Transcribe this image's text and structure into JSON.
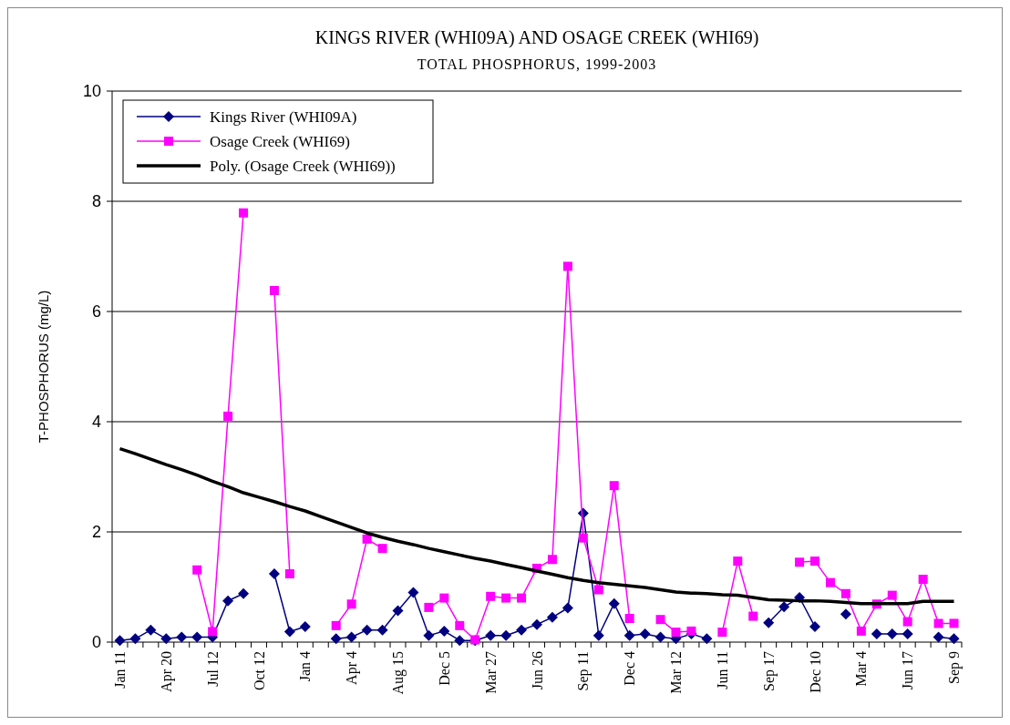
{
  "chart_data": {
    "type": "line",
    "title": "KINGS RIVER (WHI09A) AND OSAGE CREEK (WHI69)",
    "subtitle": "TOTAL PHOSPHORUS, 1999-2003",
    "ylabel": "T-PHOSPHORUS (mg/L)",
    "categories": [
      "Jan 11",
      null,
      null,
      "Apr 20",
      null,
      null,
      "Jul 12",
      null,
      null,
      "Oct 12",
      null,
      null,
      "Jan 4",
      null,
      null,
      "Apr 4",
      null,
      null,
      "Aug 15",
      null,
      null,
      "Dec 5",
      null,
      null,
      "Mar 27",
      null,
      null,
      "Jun 26",
      null,
      null,
      "Sep 11",
      null,
      null,
      "Dec 4",
      null,
      null,
      "Mar 12",
      null,
      null,
      "Jun 11",
      null,
      null,
      "Sep 17",
      null,
      null,
      "Dec 10",
      null,
      null,
      "Mar 4",
      null,
      null,
      "Jun 17",
      null,
      null,
      "Sep 9"
    ],
    "ylim": [
      0,
      10
    ],
    "yticks": [
      0,
      2,
      4,
      6,
      8,
      10
    ],
    "grid": "y",
    "legend": "top left",
    "series": [
      {
        "name": "Kings River (WHI09A)",
        "color": "#000080",
        "marker": "diamond",
        "values": [
          0.03,
          0.06,
          0.22,
          0.06,
          0.09,
          0.09,
          0.09,
          0.75,
          0.88,
          null,
          1.24,
          0.19,
          0.28,
          null,
          0.06,
          0.09,
          0.22,
          0.22,
          0.57,
          0.9,
          0.12,
          0.2,
          0.03,
          0.03,
          0.12,
          0.12,
          0.22,
          0.32,
          0.45,
          0.62,
          2.34,
          0.12,
          0.7,
          0.12,
          0.15,
          0.09,
          0.06,
          0.15,
          0.06,
          null,
          null,
          null,
          0.35,
          0.64,
          0.81,
          0.28,
          null,
          0.51,
          null,
          0.15,
          0.15,
          0.15,
          null,
          0.09,
          0.06
        ]
      },
      {
        "name": "Osage Creek (WHI69)",
        "color": "#ff00ff",
        "marker": "square",
        "values": [
          null,
          null,
          null,
          null,
          null,
          1.31,
          0.19,
          4.1,
          7.79,
          null,
          6.38,
          1.24,
          null,
          null,
          0.3,
          0.69,
          1.87,
          1.7,
          null,
          null,
          0.63,
          0.8,
          0.3,
          0.04,
          0.83,
          0.8,
          0.8,
          1.34,
          1.5,
          6.82,
          1.89,
          0.95,
          2.84,
          0.43,
          null,
          0.41,
          0.18,
          0.2,
          null,
          0.18,
          1.47,
          0.47,
          null,
          null,
          1.45,
          1.47,
          1.08,
          0.88,
          0.2,
          0.69,
          0.85,
          0.37,
          1.14,
          0.34,
          0.34
        ]
      },
      {
        "name": "Poly. (Osage Creek (WHI69))",
        "color": "#000000",
        "marker": "none",
        "values": [
          3.51,
          3.42,
          3.32,
          3.22,
          3.13,
          3.03,
          2.92,
          2.82,
          2.71,
          2.63,
          2.55,
          2.46,
          2.38,
          2.28,
          2.18,
          2.08,
          1.98,
          1.9,
          1.83,
          1.77,
          1.7,
          1.64,
          1.58,
          1.52,
          1.47,
          1.41,
          1.35,
          1.29,
          1.23,
          1.17,
          1.12,
          1.08,
          1.05,
          1.02,
          0.99,
          0.95,
          0.91,
          0.89,
          0.88,
          0.86,
          0.85,
          0.81,
          0.77,
          0.76,
          0.75,
          0.75,
          0.74,
          0.72,
          0.7,
          0.7,
          0.7,
          0.7,
          0.74,
          0.74,
          0.74
        ]
      }
    ]
  }
}
